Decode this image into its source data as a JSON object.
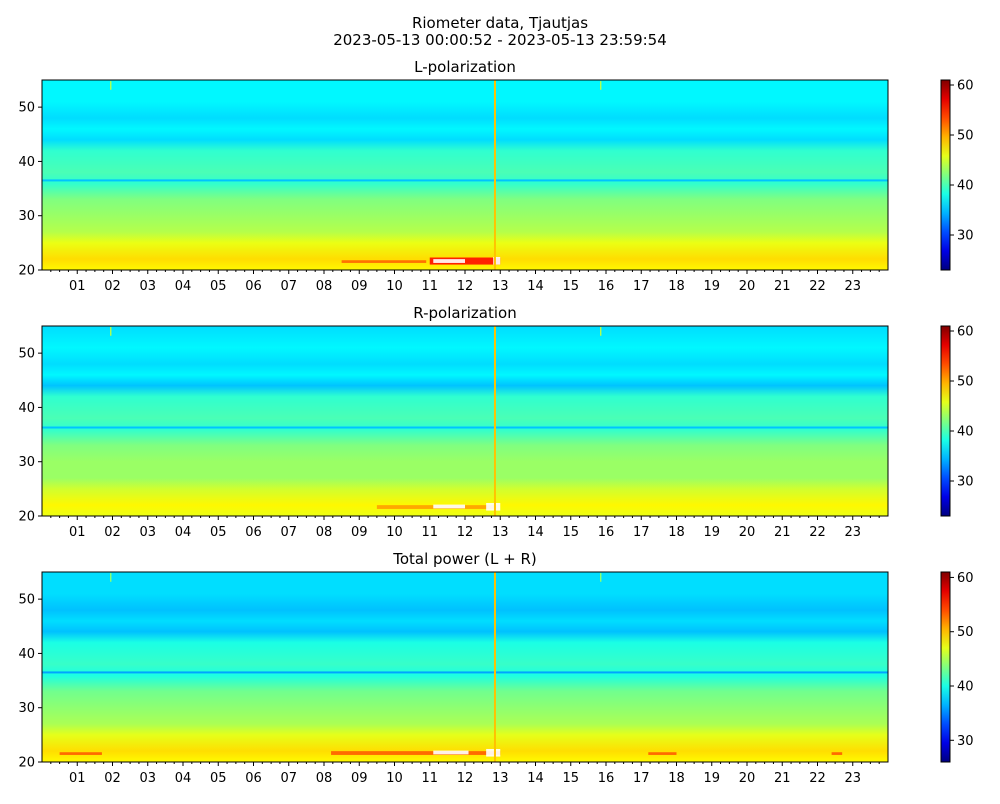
{
  "figure": {
    "title_line1": "Riometer data, Tjautjas",
    "title_line2": "2023-05-13 00:00:52 - 2023-05-13 23:59:54"
  },
  "chart_data": [
    {
      "type": "heatmap",
      "title": "L-polarization",
      "xlabel": "",
      "ylabel": "",
      "colormap": "jet",
      "x_tick_labels": [
        "01",
        "02",
        "03",
        "04",
        "05",
        "06",
        "07",
        "08",
        "09",
        "10",
        "11",
        "12",
        "13",
        "14",
        "15",
        "16",
        "17",
        "18",
        "19",
        "20",
        "21",
        "22",
        "23"
      ],
      "x_range": [
        0,
        24
      ],
      "y_ticks": [
        20,
        30,
        40,
        50
      ],
      "y_range": [
        20,
        55
      ],
      "colorbar_ticks": [
        30,
        40,
        50,
        60
      ],
      "colorbar_range": [
        23,
        61
      ],
      "y_profile": [
        {
          "y": 20,
          "v": 47
        },
        {
          "y": 22,
          "v": 48
        },
        {
          "y": 25,
          "v": 46
        },
        {
          "y": 27,
          "v": 44
        },
        {
          "y": 30,
          "v": 43
        },
        {
          "y": 33,
          "v": 42
        },
        {
          "y": 36,
          "v": 39
        },
        {
          "y": 38,
          "v": 40
        },
        {
          "y": 42,
          "v": 39
        },
        {
          "y": 44,
          "v": 36
        },
        {
          "y": 46,
          "v": 37
        },
        {
          "y": 48,
          "v": 36
        },
        {
          "y": 51,
          "v": 37
        },
        {
          "y": 55,
          "v": 37
        }
      ],
      "thin_bands": [
        {
          "y": 36.5,
          "v": 35
        }
      ],
      "spike_hour": 12.85,
      "spike_value": 49,
      "hot_patches": [
        {
          "x0": 8.5,
          "x1": 10.9,
          "y0": 21.3,
          "y1": 21.8,
          "v": 52
        },
        {
          "x0": 11.0,
          "x1": 13.0,
          "y0": 21.0,
          "y1": 22.3,
          "v": 55
        }
      ],
      "white_patches": [
        {
          "x0": 11.1,
          "x1": 12.0,
          "y0": 21.3,
          "y1": 22.0
        },
        {
          "x0": 12.8,
          "x1": 13.0,
          "y0": 21.0,
          "y1": 22.4
        }
      ],
      "markers": [
        {
          "x": 1.95,
          "y0": 53.2,
          "y1": 54.8,
          "v": 44
        },
        {
          "x": 15.85,
          "y0": 53.2,
          "y1": 54.8,
          "v": 44
        }
      ]
    },
    {
      "type": "heatmap",
      "title": "R-polarization",
      "xlabel": "",
      "ylabel": "",
      "colormap": "jet",
      "x_tick_labels": [
        "01",
        "02",
        "03",
        "04",
        "05",
        "06",
        "07",
        "08",
        "09",
        "10",
        "11",
        "12",
        "13",
        "14",
        "15",
        "16",
        "17",
        "18",
        "19",
        "20",
        "21",
        "22",
        "23"
      ],
      "x_range": [
        0,
        24
      ],
      "y_ticks": [
        20,
        30,
        40,
        50
      ],
      "y_range": [
        20,
        55
      ],
      "colorbar_ticks": [
        30,
        40,
        50,
        60
      ],
      "colorbar_range": [
        23,
        61
      ],
      "y_profile": [
        {
          "y": 20,
          "v": 46
        },
        {
          "y": 22,
          "v": 47
        },
        {
          "y": 25,
          "v": 45
        },
        {
          "y": 27,
          "v": 43
        },
        {
          "y": 30,
          "v": 43
        },
        {
          "y": 33,
          "v": 42
        },
        {
          "y": 36,
          "v": 39
        },
        {
          "y": 38,
          "v": 40
        },
        {
          "y": 42,
          "v": 39
        },
        {
          "y": 44,
          "v": 35
        },
        {
          "y": 46,
          "v": 37
        },
        {
          "y": 48,
          "v": 36
        },
        {
          "y": 51,
          "v": 37
        },
        {
          "y": 55,
          "v": 36
        }
      ],
      "thin_bands": [
        {
          "y": 36.3,
          "v": 35
        }
      ],
      "spike_hour": 12.85,
      "spike_value": 49,
      "hot_patches": [
        {
          "x0": 9.5,
          "x1": 12.9,
          "y0": 21.3,
          "y1": 22.0,
          "v": 50
        }
      ],
      "white_patches": [
        {
          "x0": 11.1,
          "x1": 12.0,
          "y0": 21.4,
          "y1": 22.1
        },
        {
          "x0": 12.6,
          "x1": 13.0,
          "y0": 21.0,
          "y1": 22.4
        }
      ],
      "markers": [
        {
          "x": 1.95,
          "y0": 53.2,
          "y1": 54.8,
          "v": 44
        },
        {
          "x": 15.85,
          "y0": 53.2,
          "y1": 54.8,
          "v": 44
        }
      ]
    },
    {
      "type": "heatmap",
      "title": "Total power (L + R)",
      "xlabel": "",
      "ylabel": "",
      "colormap": "jet",
      "x_tick_labels": [
        "01",
        "02",
        "03",
        "04",
        "05",
        "06",
        "07",
        "08",
        "09",
        "10",
        "11",
        "12",
        "13",
        "14",
        "15",
        "16",
        "17",
        "18",
        "19",
        "20",
        "21",
        "22",
        "23"
      ],
      "x_range": [
        0,
        24
      ],
      "y_ticks": [
        20,
        30,
        40,
        50
      ],
      "y_range": [
        20,
        55
      ],
      "colorbar_ticks": [
        30,
        40,
        50,
        60
      ],
      "colorbar_range": [
        26,
        61
      ],
      "y_profile": [
        {
          "y": 20,
          "v": 48
        },
        {
          "y": 22,
          "v": 49
        },
        {
          "y": 25,
          "v": 47
        },
        {
          "y": 27,
          "v": 45
        },
        {
          "y": 30,
          "v": 44
        },
        {
          "y": 33,
          "v": 43
        },
        {
          "y": 36,
          "v": 40
        },
        {
          "y": 38,
          "v": 41
        },
        {
          "y": 42,
          "v": 40
        },
        {
          "y": 44,
          "v": 37
        },
        {
          "y": 46,
          "v": 38
        },
        {
          "y": 48,
          "v": 37
        },
        {
          "y": 51,
          "v": 38
        },
        {
          "y": 55,
          "v": 38
        }
      ],
      "thin_bands": [
        {
          "y": 36.5,
          "v": 36
        }
      ],
      "spike_hour": 12.85,
      "spike_value": 50,
      "hot_patches": [
        {
          "x0": 0.5,
          "x1": 1.7,
          "y0": 21.3,
          "y1": 21.8,
          "v": 53
        },
        {
          "x0": 8.2,
          "x1": 13.0,
          "y0": 21.3,
          "y1": 22.0,
          "v": 53
        },
        {
          "x0": 17.2,
          "x1": 18.0,
          "y0": 21.3,
          "y1": 21.8,
          "v": 53
        },
        {
          "x0": 22.4,
          "x1": 22.7,
          "y0": 21.3,
          "y1": 21.8,
          "v": 53
        }
      ],
      "white_patches": [
        {
          "x0": 11.1,
          "x1": 12.1,
          "y0": 21.4,
          "y1": 22.1
        },
        {
          "x0": 12.6,
          "x1": 13.0,
          "y0": 21.0,
          "y1": 22.4
        }
      ],
      "markers": [
        {
          "x": 1.95,
          "y0": 53.2,
          "y1": 54.8,
          "v": 44
        },
        {
          "x": 15.85,
          "y0": 53.2,
          "y1": 54.8,
          "v": 44
        }
      ]
    }
  ]
}
